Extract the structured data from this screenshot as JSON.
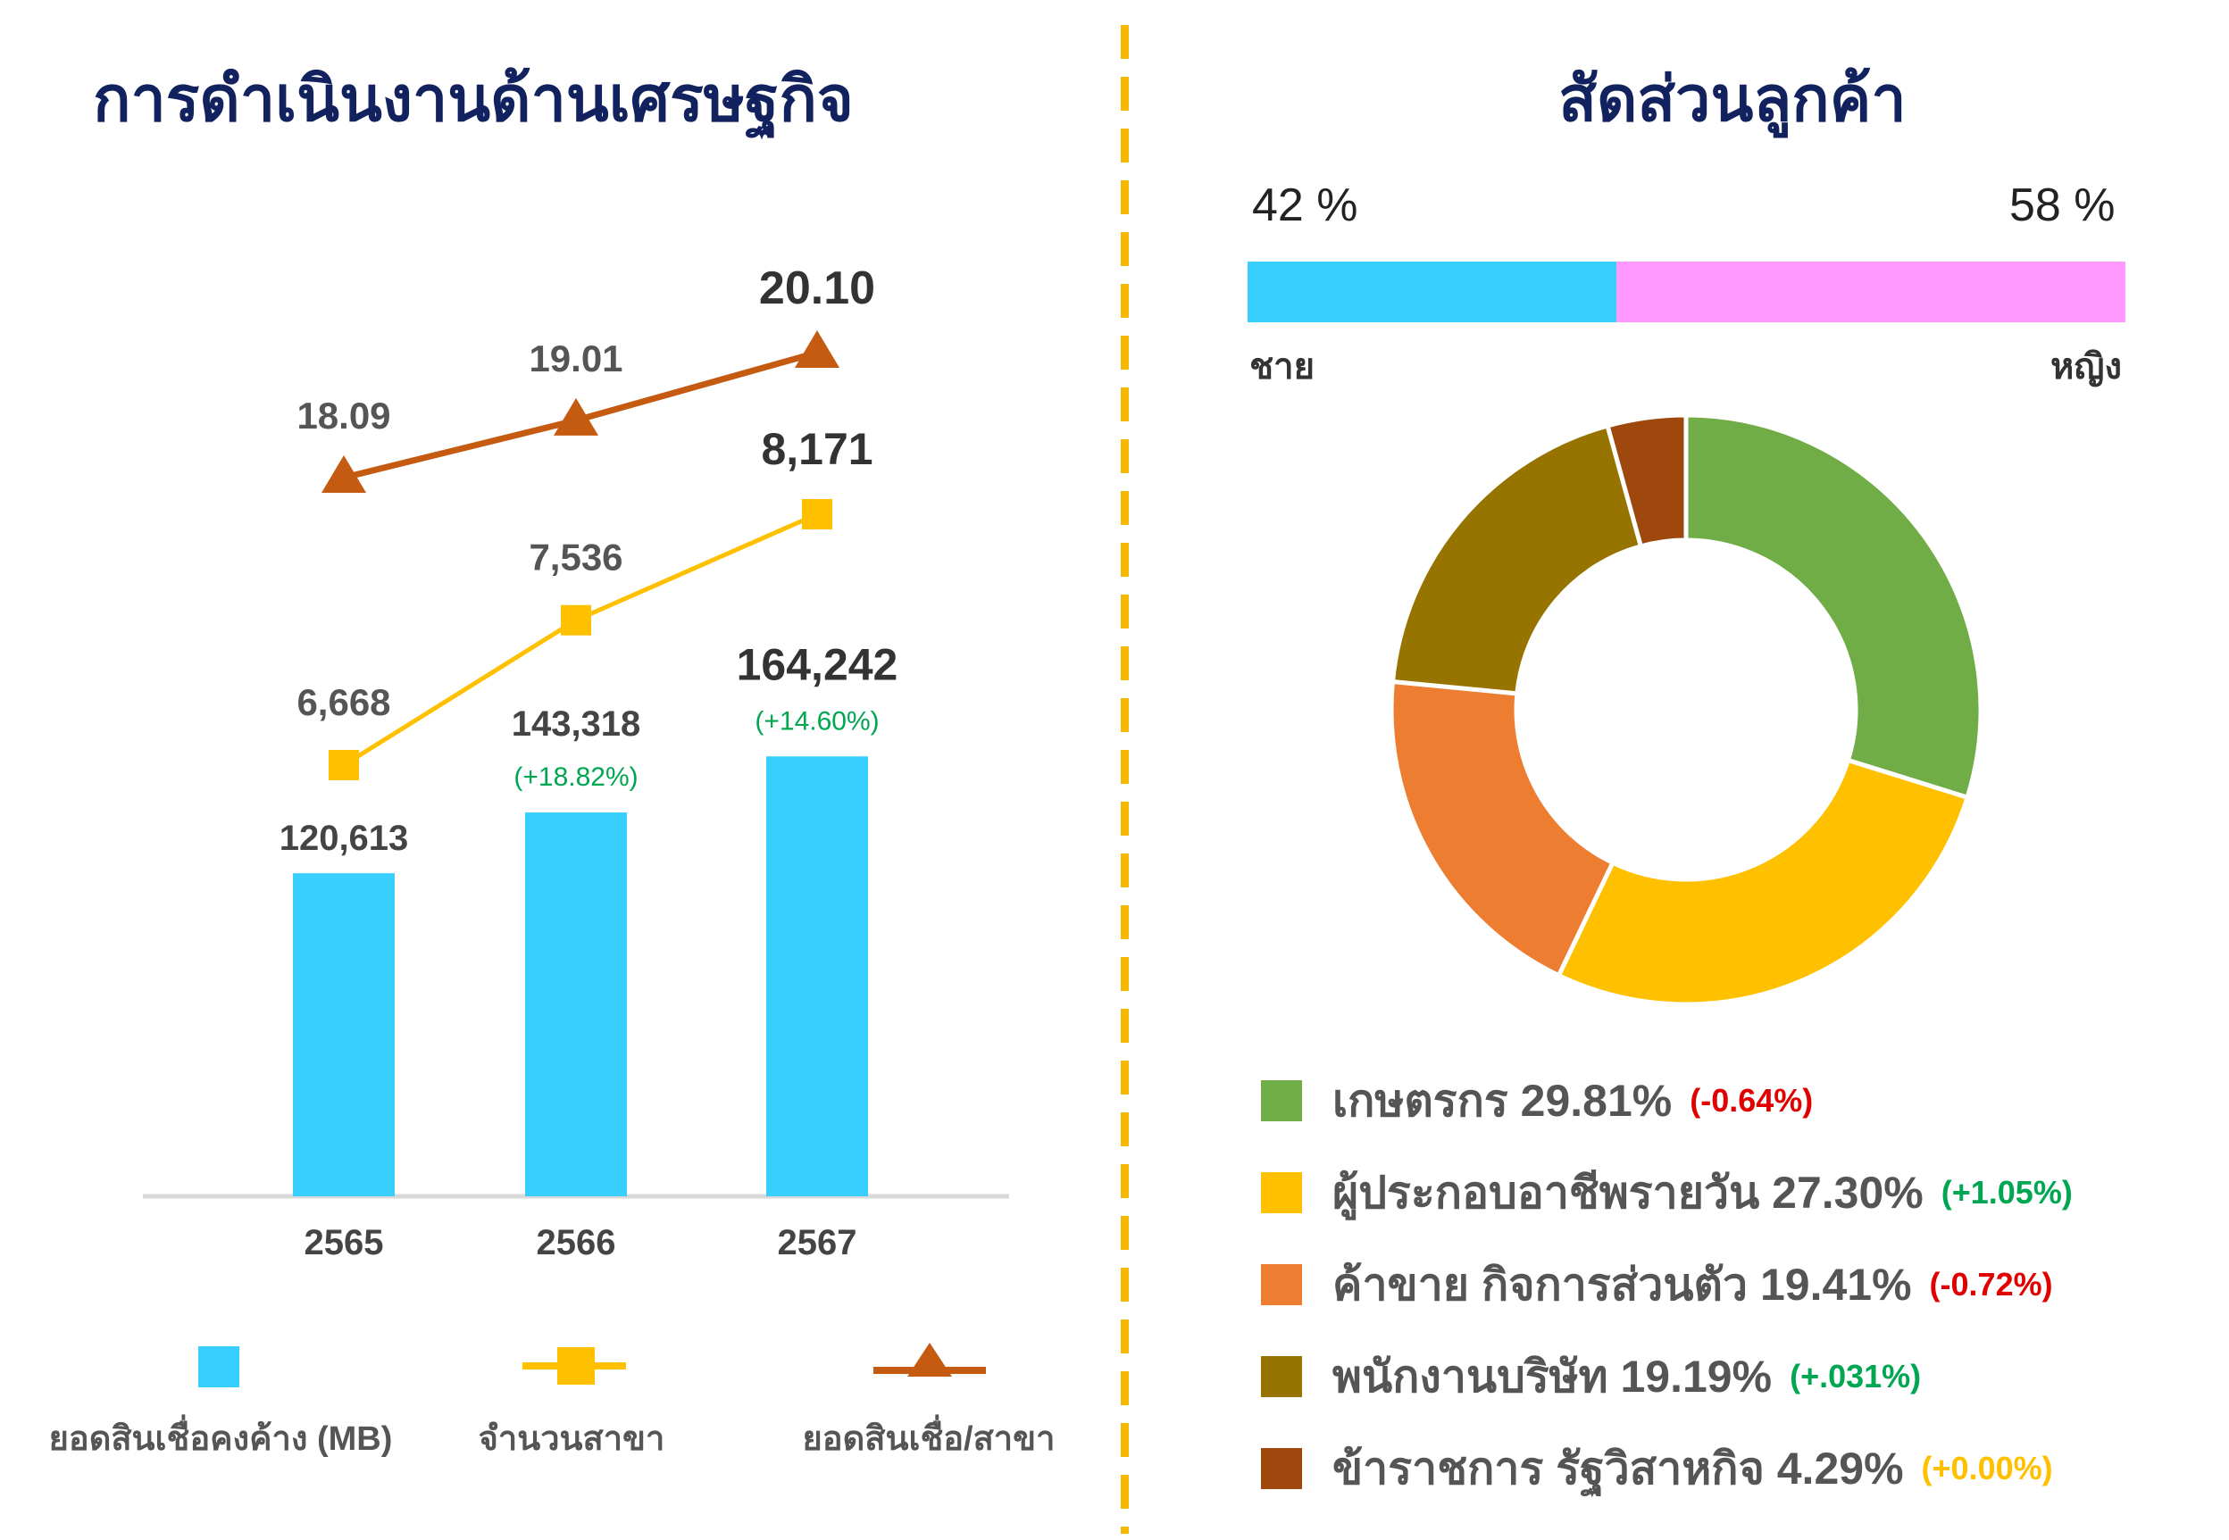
{
  "left": {
    "title": "การดำเนินงานด้านเศรษฐกิจ",
    "chart_data": {
      "type": "bar",
      "categories": [
        "2565",
        "2566",
        "2567"
      ],
      "series": [
        {
          "name": "ยอดสินเชื่อคงค้าง (MB)",
          "kind": "bar",
          "values": [
            120613,
            143318,
            164242
          ],
          "labels": [
            "120,613",
            "143,318",
            "164,242"
          ],
          "growth": [
            "",
            "(+18.82%)",
            "(+14.60%)"
          ],
          "color": "#38cfff"
        },
        {
          "name": "จำนวนสาขา",
          "kind": "line",
          "marker": "square",
          "values": [
            6668,
            7536,
            8171
          ],
          "labels": [
            "6,668",
            "7,536",
            "8,171"
          ],
          "color": "#ffc000"
        },
        {
          "name": "ยอดสินเชื่อ/สาขา",
          "kind": "line",
          "marker": "triangle",
          "values": [
            18.09,
            19.01,
            20.1
          ],
          "labels": [
            "18.09",
            "19.01",
            "20.10"
          ],
          "color": "#c55a11"
        }
      ],
      "growth_color": "#00a651"
    }
  },
  "right": {
    "title": "สัดส่วนลูกค้า",
    "gender": {
      "male_pct": 42,
      "female_pct": 58,
      "male_label_pct": "42 %",
      "female_label_pct": "58 %",
      "male_label": "ชาย",
      "female_label": "หญิง",
      "male_color": "#38cfff",
      "female_color": "#ff99ff"
    },
    "chart_data": {
      "type": "pie",
      "slices": [
        {
          "label": "เกษตรกร",
          "value": 29.81,
          "text": "เกษตรกร 29.81%",
          "change": "(-0.64%)",
          "change_color": "#e00000",
          "color": "#70ad47"
        },
        {
          "label": "ผู้ประกอบอาชีพรายวัน",
          "value": 27.3,
          "text": "ผู้ประกอบอาชีพรายวัน 27.30%",
          "change": "(+1.05%)",
          "change_color": "#00a651",
          "color": "#ffc000"
        },
        {
          "label": "ค้าขาย กิจการส่วนตัว",
          "value": 19.41,
          "text": "ค้าขาย กิจการส่วนตัว 19.41%",
          "change": "(-0.72%)",
          "change_color": "#e00000",
          "color": "#ed7d31"
        },
        {
          "label": "พนักงานบริษัท",
          "value": 19.19,
          "text": "พนักงานบริษัท 19.19%",
          "change": "(+.031%)",
          "change_color": "#00a651",
          "color": "#977400"
        },
        {
          "label": "ข้าราชการ รัฐวิสาหกิจ",
          "value": 4.29,
          "text": "ข้าราชการ รัฐวิสาหกิจ 4.29%",
          "change": "(+0.00%)",
          "change_color": "#ffc000",
          "color": "#9e480e"
        }
      ]
    }
  }
}
